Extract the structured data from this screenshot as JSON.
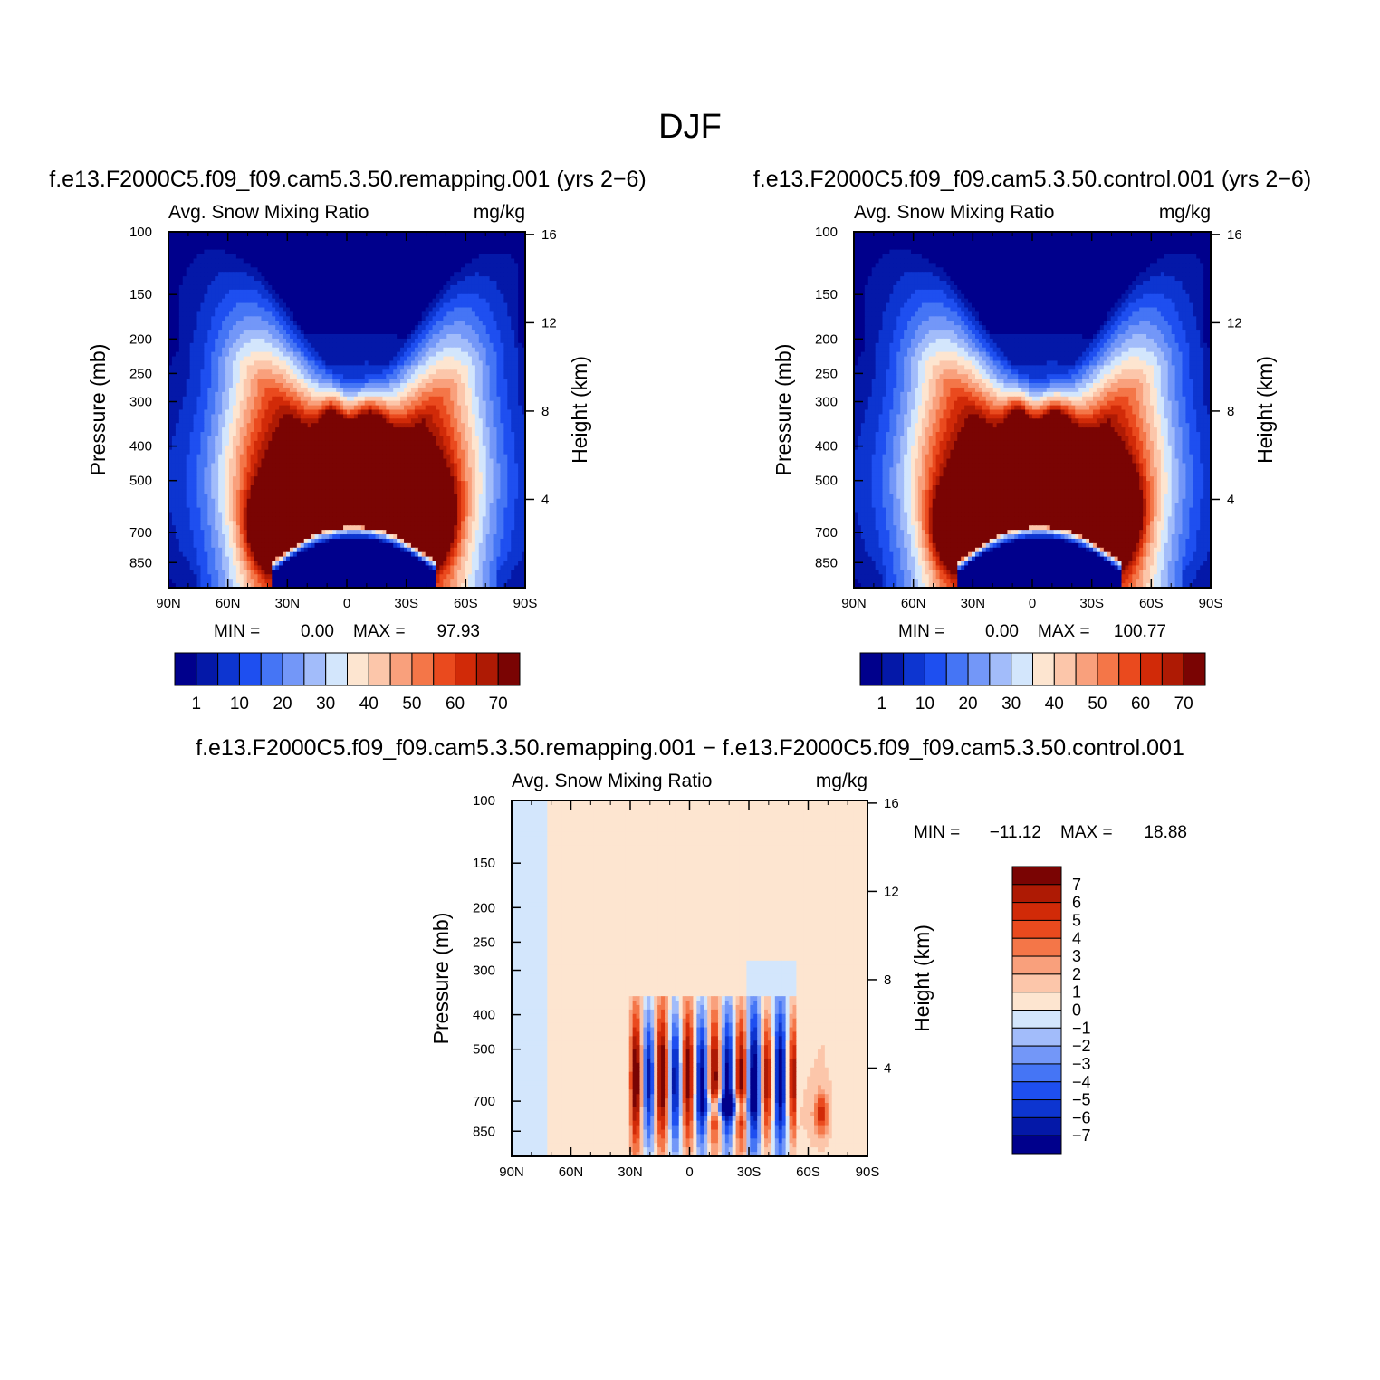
{
  "page_title": "DJF",
  "chart_data": [
    {
      "id": "panel-remapping",
      "type": "heatmap",
      "title": "f.e13.F2000C5.f09_f09.cam5.3.50.remapping.001 (yrs 2−6)",
      "subtitle_left": "Avg. Snow Mixing Ratio",
      "subtitle_right": "mg/kg",
      "ylabel": "Pressure (mb)",
      "ylabel2": "Height (km)",
      "x_ticks": [
        "90N",
        "60N",
        "30N",
        "0",
        "30S",
        "60S",
        "90S"
      ],
      "y_ticks": [
        "100",
        "150",
        "200",
        "250",
        "300",
        "400",
        "500",
        "700",
        "850"
      ],
      "y2_ticks": [
        "16",
        "12",
        "8",
        "4"
      ],
      "min_label": "MIN =",
      "min_value": "0.00",
      "max_label": "MAX =",
      "max_value": "97.93",
      "max_numeric": 97.93,
      "levels": [
        1,
        5,
        10,
        15,
        20,
        25,
        30,
        35,
        40,
        45,
        50,
        55,
        60,
        65,
        70
      ],
      "colorbar_labels": [
        "1",
        "10",
        "20",
        "30",
        "40",
        "50",
        "60",
        "70"
      ],
      "colors": [
        "#00008c",
        "#0418a8",
        "#0d35d0",
        "#1e4ff0",
        "#4575f5",
        "#7397f8",
        "#a2bcfa",
        "#d3e6fc",
        "#fde5d0",
        "#fcc6aa",
        "#f9a07c",
        "#f47648",
        "#ea4a1e",
        "#d12a08",
        "#ae1a04",
        "#7a0403"
      ]
    },
    {
      "id": "panel-control",
      "type": "heatmap",
      "title": "f.e13.F2000C5.f09_f09.cam5.3.50.control.001 (yrs 2−6)",
      "subtitle_left": "Avg. Snow Mixing Ratio",
      "subtitle_right": "mg/kg",
      "ylabel": "Pressure (mb)",
      "ylabel2": "Height (km)",
      "x_ticks": [
        "90N",
        "60N",
        "30N",
        "0",
        "30S",
        "60S",
        "90S"
      ],
      "y_ticks": [
        "100",
        "150",
        "200",
        "250",
        "300",
        "400",
        "500",
        "700",
        "850"
      ],
      "y2_ticks": [
        "16",
        "12",
        "8",
        "4"
      ],
      "min_label": "MIN =",
      "min_value": "0.00",
      "max_label": "MAX =",
      "max_value": "100.77",
      "max_numeric": 100.77,
      "levels": [
        1,
        5,
        10,
        15,
        20,
        25,
        30,
        35,
        40,
        45,
        50,
        55,
        60,
        65,
        70
      ],
      "colorbar_labels": [
        "1",
        "10",
        "20",
        "30",
        "40",
        "50",
        "60",
        "70"
      ],
      "colors": [
        "#00008c",
        "#0418a8",
        "#0d35d0",
        "#1e4ff0",
        "#4575f5",
        "#7397f8",
        "#a2bcfa",
        "#d3e6fc",
        "#fde5d0",
        "#fcc6aa",
        "#f9a07c",
        "#f47648",
        "#ea4a1e",
        "#d12a08",
        "#ae1a04",
        "#7a0403"
      ]
    },
    {
      "id": "panel-difference",
      "type": "heatmap",
      "title": "f.e13.F2000C5.f09_f09.cam5.3.50.remapping.001 − f.e13.F2000C5.f09_f09.cam5.3.50.control.001",
      "subtitle_left": "Avg. Snow Mixing Ratio",
      "subtitle_right": "mg/kg",
      "ylabel": "Pressure (mb)",
      "ylabel2": "Height (km)",
      "x_ticks": [
        "90N",
        "60N",
        "30N",
        "0",
        "30S",
        "60S",
        "90S"
      ],
      "y_ticks": [
        "100",
        "150",
        "200",
        "250",
        "300",
        "400",
        "500",
        "700",
        "850"
      ],
      "y2_ticks": [
        "16",
        "12",
        "8",
        "4"
      ],
      "min_label": "MIN =",
      "min_value": "−11.12",
      "max_label": "MAX =",
      "max_value": "18.88",
      "min_numeric": -11.12,
      "max_numeric": 18.88,
      "levels": [
        -7,
        -6,
        -5,
        -4,
        -3,
        -2,
        -1,
        0,
        1,
        2,
        3,
        4,
        5,
        6,
        7
      ],
      "colorbar_labels": [
        "7",
        "6",
        "5",
        "4",
        "3",
        "2",
        "1",
        "0",
        "−1",
        "−2",
        "−3",
        "−4",
        "−5",
        "−6",
        "−7"
      ],
      "colors": [
        "#00008c",
        "#0418a8",
        "#0d35d0",
        "#1e4ff0",
        "#4575f5",
        "#7397f8",
        "#a2bcfa",
        "#d3e6fc",
        "#fde5d0",
        "#fcc6aa",
        "#f9a07c",
        "#f47648",
        "#ea4a1e",
        "#d12a08",
        "#ae1a04",
        "#7a0403"
      ]
    }
  ]
}
